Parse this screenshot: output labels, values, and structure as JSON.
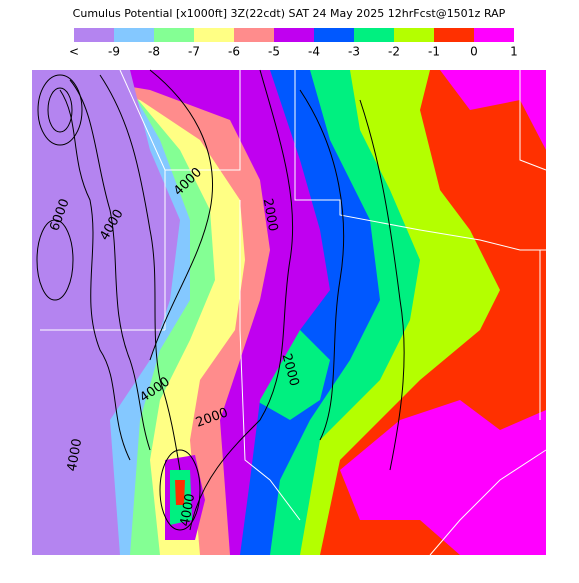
{
  "header": {
    "title": "Cumulus Potential [x1000ft] 3Z(22cdt) SAT 24 May 2025 12hrFcst@1501z RAP"
  },
  "legend": {
    "labels": [
      "<",
      "-9",
      "-8",
      "-7",
      "-6",
      "-5",
      "-4",
      "-3",
      "-2",
      "-1",
      "0",
      "1"
    ],
    "colors": [
      "#b484f0",
      "#84c8ff",
      "#84ff94",
      "#ffff84",
      "#ff8c8c",
      "#c000f0",
      "#0058ff",
      "#00f080",
      "#b4ff00",
      "#ff3000",
      "#ff00ff"
    ]
  },
  "contour_labels": [
    "6000",
    "4000",
    "4000",
    "2000",
    "2000",
    "4000",
    "2000",
    "4000",
    "4000"
  ]
}
